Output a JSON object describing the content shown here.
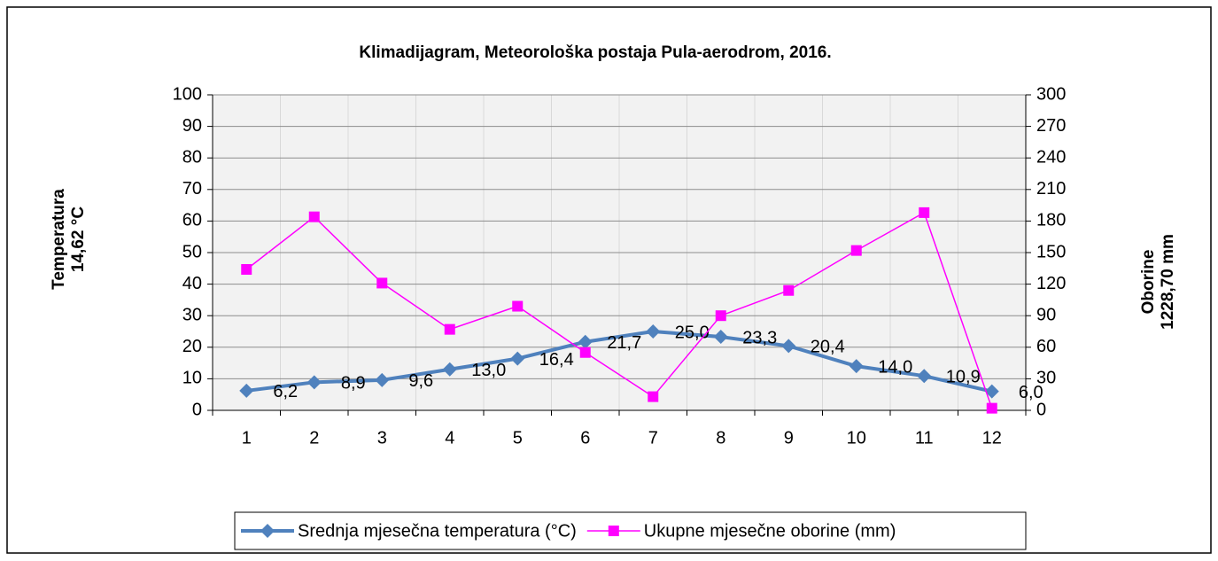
{
  "chart_data": {
    "type": "line",
    "title": "Klimadijagram, Meteorološka postaja Pula-aerodrom, 2016.",
    "ylabel": [
      "Temperatura",
      "14,62 °C"
    ],
    "y2label": [
      "Oborine",
      "1228,70 mm"
    ],
    "categories": [
      "1",
      "2",
      "3",
      "4",
      "5",
      "6",
      "7",
      "8",
      "9",
      "10",
      "11",
      "12"
    ],
    "series": [
      {
        "name": "Srednja mjesečna temperatura (°C)",
        "color": "#4f81bd",
        "marker": "diamond",
        "values": [
          6.2,
          8.9,
          9.6,
          13.0,
          16.4,
          21.7,
          25.0,
          23.3,
          20.4,
          14.0,
          10.9,
          6.0
        ],
        "value_labels": [
          "6,2",
          "8,9",
          "9,6",
          "13,0",
          "16,4",
          "21,7",
          "25,0",
          "23,3",
          "20,4",
          "14,0",
          "10,9",
          "6,0"
        ]
      },
      {
        "name": "Ukupne mjesečne oborine (mm)",
        "color": "#ff00ff",
        "marker": "square",
        "axis": "y2",
        "values": [
          134,
          184,
          121,
          77,
          99,
          55,
          13,
          90,
          114,
          152,
          188,
          2
        ]
      }
    ],
    "ylim": [
      0,
      100
    ],
    "yticks": [
      0,
      10,
      20,
      30,
      40,
      50,
      60,
      70,
      80,
      90,
      100
    ],
    "y2lim": [
      0,
      300
    ],
    "y2ticks": [
      0,
      30,
      60,
      90,
      120,
      150,
      180,
      210,
      240,
      270,
      300
    ],
    "grid": true,
    "legend": "bottom"
  }
}
